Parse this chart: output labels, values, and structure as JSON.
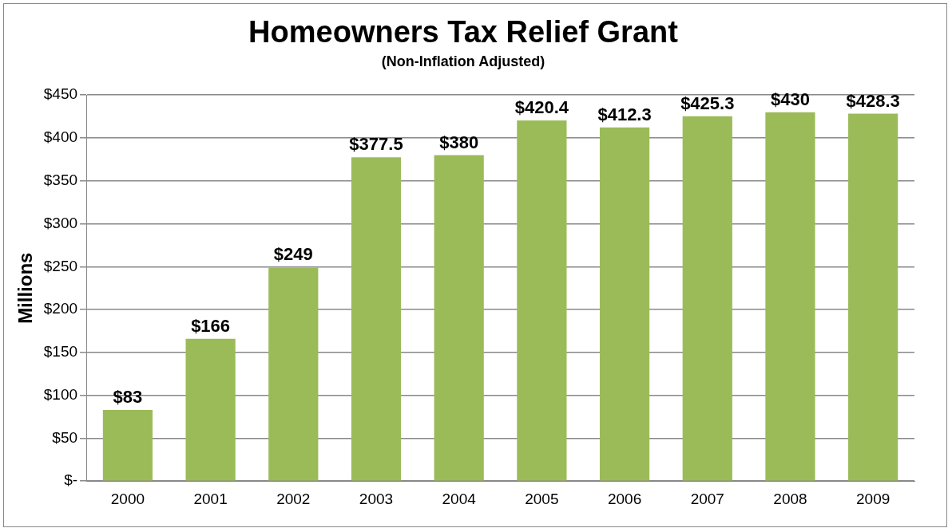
{
  "chart_data": {
    "type": "bar",
    "title": "Homeowners Tax Relief Grant",
    "subtitle": "(Non-Inflation Adjusted)",
    "ylabel": "Millions",
    "categories": [
      "2000",
      "2001",
      "2002",
      "2003",
      "2004",
      "2005",
      "2006",
      "2007",
      "2008",
      "2009"
    ],
    "values": [
      83,
      166,
      249,
      377.5,
      380,
      420.4,
      412.3,
      425.3,
      430,
      428.3
    ],
    "value_labels": [
      "$83",
      "$166",
      "$249",
      "$377.5",
      "$380",
      "$420.4",
      "$412.3",
      "$425.3",
      "$430",
      "$428.3"
    ],
    "color": "#9bbb59",
    "ylim": [
      0,
      450
    ],
    "yticks": [
      {
        "value": 0,
        "label": "$-"
      },
      {
        "value": 50,
        "label": "$50"
      },
      {
        "value": 100,
        "label": "$100"
      },
      {
        "value": 150,
        "label": "$150"
      },
      {
        "value": 200,
        "label": "$200"
      },
      {
        "value": 250,
        "label": "$250"
      },
      {
        "value": 300,
        "label": "$300"
      },
      {
        "value": 350,
        "label": "$350"
      },
      {
        "value": 400,
        "label": "$400"
      },
      {
        "value": 450,
        "label": "$450"
      }
    ],
    "grid": "y",
    "legend": false
  }
}
